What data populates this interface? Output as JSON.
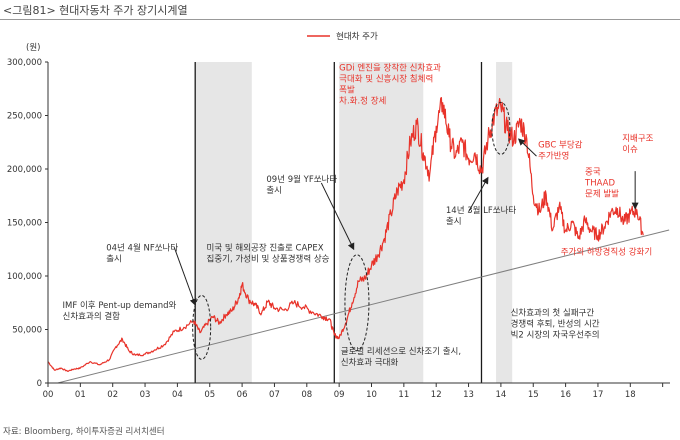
{
  "figure": {
    "title": "<그림81> 현대자동차 주가 장기시계열",
    "source": "자료: Bloomberg, 하이투자증권 리서치센터"
  },
  "colors": {
    "price_line": "#e8332a",
    "trend_line": "#7f7f7f",
    "shade": "#e6e6e6",
    "divider": "#1a1a1a",
    "annotation_red": "#e8332a",
    "axis": "#333333"
  },
  "chart_data": {
    "type": "line",
    "y_unit_label": "(원)",
    "ylim": [
      0,
      300000
    ],
    "yticks": [
      0,
      50000,
      100000,
      150000,
      200000,
      250000,
      300000
    ],
    "ytick_labels": [
      "0",
      "50,000",
      "100,000",
      "150,000",
      "200,000",
      "250,000",
      "300,000"
    ],
    "xlim": [
      2000,
      2019.2
    ],
    "xtick_labels": [
      "00",
      "01",
      "02",
      "03",
      "04",
      "05",
      "06",
      "07",
      "08",
      "09",
      "10",
      "11",
      "12",
      "13",
      "14",
      "15",
      "16",
      "17",
      "18"
    ],
    "legend": {
      "position": "top-center",
      "entries": [
        "현대차 주가"
      ]
    },
    "series": [
      {
        "name": "현대차 주가",
        "x": [
          2000.0,
          2000.2,
          2000.4,
          2000.6,
          2000.8,
          2001.0,
          2001.3,
          2001.6,
          2001.9,
          2002.1,
          2002.3,
          2002.5,
          2002.7,
          2003.0,
          2003.3,
          2003.6,
          2003.9,
          2004.2,
          2004.5,
          2004.7,
          2004.9,
          2005.1,
          2005.3,
          2005.5,
          2005.7,
          2005.9,
          2006.0,
          2006.2,
          2006.4,
          2006.6,
          2006.8,
          2007.0,
          2007.3,
          2007.6,
          2007.9,
          2008.2,
          2008.5,
          2008.7,
          2008.85,
          2009.0,
          2009.2,
          2009.4,
          2009.6,
          2009.8,
          2010.0,
          2010.2,
          2010.4,
          2010.6,
          2010.8,
          2011.0,
          2011.2,
          2011.4,
          2011.6,
          2011.8,
          2012.0,
          2012.2,
          2012.4,
          2012.6,
          2012.8,
          2013.0,
          2013.2,
          2013.4,
          2013.6,
          2013.8,
          2014.0,
          2014.2,
          2014.4,
          2014.6,
          2014.8,
          2015.0,
          2015.2,
          2015.4,
          2015.6,
          2015.8,
          2016.0,
          2016.2,
          2016.4,
          2016.6,
          2016.8,
          2017.0,
          2017.2,
          2017.4,
          2017.6,
          2017.8,
          2018.0,
          2018.2,
          2018.4
        ],
        "values": [
          20000,
          12000,
          14000,
          11000,
          13000,
          14000,
          20000,
          17000,
          22000,
          34000,
          41000,
          30000,
          26000,
          27000,
          31000,
          36000,
          48000,
          52000,
          58000,
          47000,
          55000,
          62000,
          56000,
          64000,
          68000,
          80000,
          92000,
          78000,
          73000,
          65000,
          76000,
          70000,
          68000,
          75000,
          71000,
          66000,
          62000,
          60000,
          45000,
          42000,
          56000,
          75000,
          95000,
          98000,
          110000,
          120000,
          135000,
          158000,
          180000,
          190000,
          225000,
          242000,
          215000,
          195000,
          240000,
          262000,
          230000,
          212000,
          225000,
          210000,
          215000,
          198000,
          228000,
          250000,
          258000,
          236000,
          228000,
          245000,
          228000,
          175000,
          160000,
          176000,
          143000,
          165000,
          142000,
          150000,
          135000,
          152000,
          142000,
          138000,
          146000,
          160000,
          163000,
          150000,
          158000,
          162000,
          138000
        ]
      }
    ],
    "trend_line": {
      "x": [
        2000.3,
        2019.2
      ],
      "y": [
        0,
        143000
      ]
    },
    "vertical_markers": [
      2004.55,
      2008.85,
      2013.4
    ],
    "shaded_periods": [
      [
        2004.55,
        2006.3
      ],
      [
        2009.0,
        2011.6
      ],
      [
        2013.85,
        2014.35
      ]
    ],
    "dashed_ellipses": [
      {
        "cx": 2004.75,
        "cy": 52000
      },
      {
        "cx": 2009.55,
        "cy": 75000
      },
      {
        "cx": 2014.0,
        "cy": 238000
      }
    ],
    "annotations": [
      {
        "lines": [
          "IMF 이후 Pent-up demand와",
          "신차효과의 결합"
        ],
        "x": 2000.45,
        "y": 70000,
        "color": "dark"
      },
      {
        "lines": [
          "04년 4월 NF쏘나타",
          "출시"
        ],
        "x": 2001.8,
        "y": 124000,
        "color": "dark"
      },
      {
        "lines": [
          "미국 및 해외공장 진출로 CAPEX",
          "집중기, 가성비 및 상품경쟁력 상승"
        ],
        "x": 2004.9,
        "y": 124000,
        "color": "dark"
      },
      {
        "lines": [
          "09년 9월 YF쏘나타",
          "출시"
        ],
        "x": 2006.75,
        "y": 188000,
        "color": "dark"
      },
      {
        "lines": [
          "GDi 엔진을 장착한 신차효과",
          "극대화 및 신흥시장 침체력",
          "폭발",
          "차.화.정 장세"
        ],
        "x": 2009.0,
        "y": 292000,
        "color": "red"
      },
      {
        "lines": [
          "14년 3월 LF쏘나타",
          "출시"
        ],
        "x": 2012.3,
        "y": 159000,
        "color": "dark"
      },
      {
        "lines": [
          "GBC 부당감",
          "주가반영"
        ],
        "x": 2015.15,
        "y": 220000,
        "color": "red"
      },
      {
        "lines": [
          "지배구조",
          "이슈"
        ],
        "x": 2017.75,
        "y": 226000,
        "color": "red"
      },
      {
        "lines": [
          "중국",
          "THAAD",
          "문제 발발"
        ],
        "x": 2016.6,
        "y": 195000,
        "color": "red"
      },
      {
        "lines": [
          "주가의 하방경직성 강화기"
        ],
        "x": 2015.85,
        "y": 120000,
        "color": "red"
      },
      {
        "lines": [
          "신차효과의 첫 실패구간",
          "경쟁력 후퇴, 반성의 시간",
          "빅2 시장의 자국우선주의"
        ],
        "x": 2014.3,
        "y": 63000,
        "color": "dark"
      },
      {
        "lines": [
          "글로벌 리세션으로 신차조기 출시,",
          "신차효과 극대화"
        ],
        "x": 2009.05,
        "y": 27000,
        "color": "dark"
      }
    ],
    "arrows": [
      {
        "from": [
          2003.9,
          127000
        ],
        "to": [
          2004.55,
          73000
        ]
      },
      {
        "from": [
          2008.45,
          187000
        ],
        "to": [
          2009.45,
          125000
        ]
      },
      {
        "from": [
          2013.0,
          160000
        ],
        "to": [
          2013.6,
          192000
        ]
      },
      {
        "from": [
          2015.1,
          212000
        ],
        "to": [
          2014.55,
          228000
        ]
      },
      {
        "from": [
          2018.15,
          198000
        ],
        "to": [
          2018.15,
          163000
        ]
      }
    ]
  }
}
